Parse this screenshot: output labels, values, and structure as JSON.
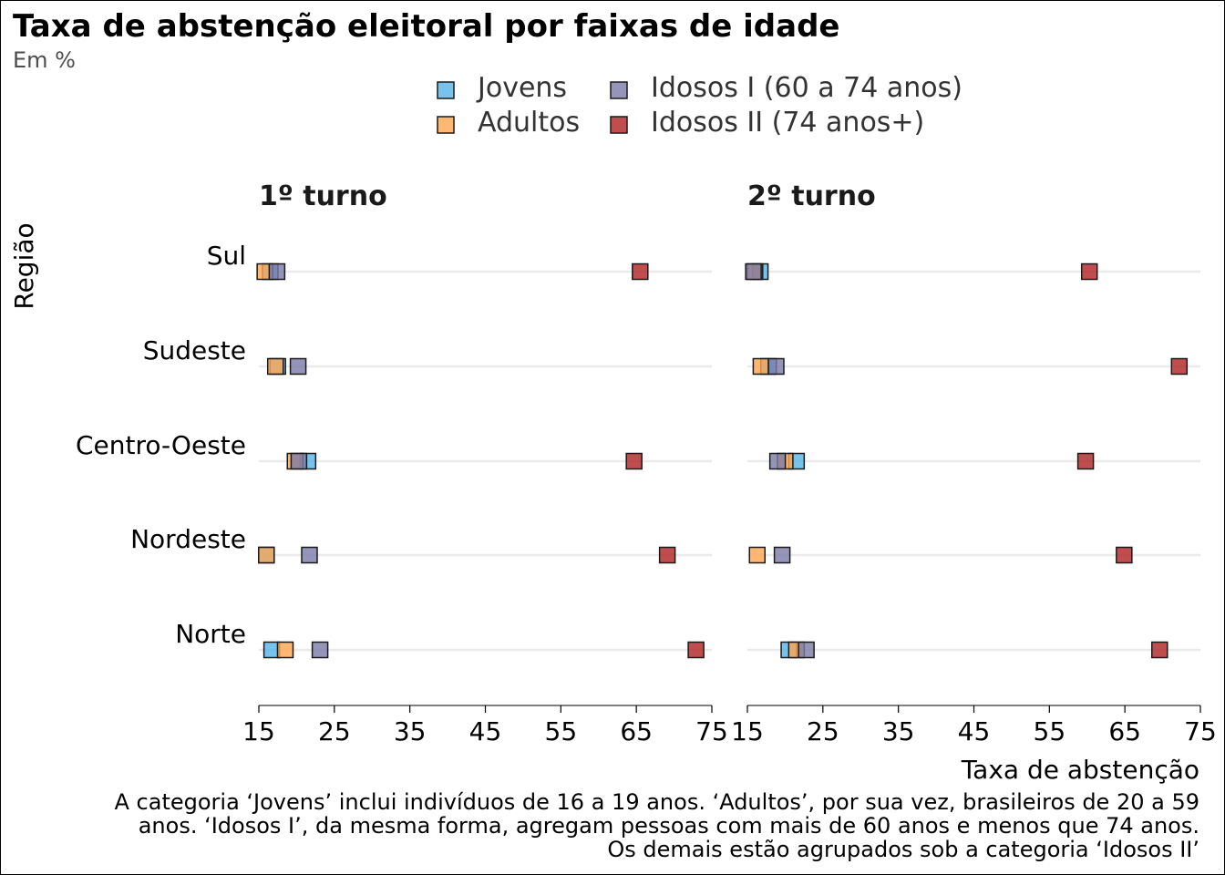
{
  "chart_data": {
    "type": "scatter",
    "title": "Taxa de abstenção eleitoral por faixas de idade",
    "subtitle": "Em %",
    "xlabel": "Taxa de abstenção",
    "ylabel": "Região",
    "xlim": [
      15,
      75
    ],
    "xticks": [
      "15",
      "25",
      "35",
      "45",
      "55",
      "65",
      "75"
    ],
    "categories": [
      "Sul",
      "Sudeste",
      "Centro-Oeste",
      "Nordeste",
      "Norte"
    ],
    "legend": {
      "position": "top",
      "entries": [
        {
          "name": "Jovens",
          "color": "#56b4e9"
        },
        {
          "name": "Adultos",
          "color": "#ffa54f"
        },
        {
          "name": "Idosos I (60 a 74 anos)",
          "color": "#7a7aa8"
        },
        {
          "name": "Idosos II (74 anos+)",
          "color": "#b22222"
        }
      ]
    },
    "grid": "horizontal",
    "panels": [
      {
        "label": "1º turno",
        "series": [
          {
            "name": "Jovens",
            "values": [
              16.5,
              17.5,
              21.5,
              16.0,
              16.7
            ]
          },
          {
            "name": "Adultos",
            "values": [
              15.8,
              17.2,
              19.8,
              16.0,
              18.5
            ]
          },
          {
            "name": "Idosos I (60 a 74 anos)",
            "values": [
              17.4,
              20.2,
              20.3,
              21.7,
              23.1
            ]
          },
          {
            "name": "Idosos II (74 anos+)",
            "values": [
              65.5,
              null,
              64.7,
              69.1,
              72.9
            ]
          }
        ]
      },
      {
        "label": "2º turno",
        "series": [
          {
            "name": "Jovens",
            "values": [
              16.7,
              17.8,
              21.5,
              null,
              20.5
            ]
          },
          {
            "name": "Adultos",
            "values": [
              16.0,
              16.8,
              20.0,
              16.3,
              21.5
            ]
          },
          {
            "name": "Idosos I (60 a 74 anos)",
            "values": [
              15.8,
              18.8,
              19.0,
              19.6,
              22.8
            ]
          },
          {
            "name": "Idosos II (74 anos+)",
            "values": [
              60.3,
              72.2,
              59.8,
              64.9,
              69.6
            ]
          }
        ]
      }
    ],
    "caption": [
      "A categoria ‘Jovens’ inclui indivíduos de 16 a 19 anos. ‘Adultos’, por sua vez, brasileiros de 20 a 59",
      "anos. ‘Idosos I’, da mesma forma, agregam pessoas com mais de 60 anos e menos que 74 anos.",
      "Os demais estão agrupados sob a categoria ‘Idosos II’"
    ]
  }
}
